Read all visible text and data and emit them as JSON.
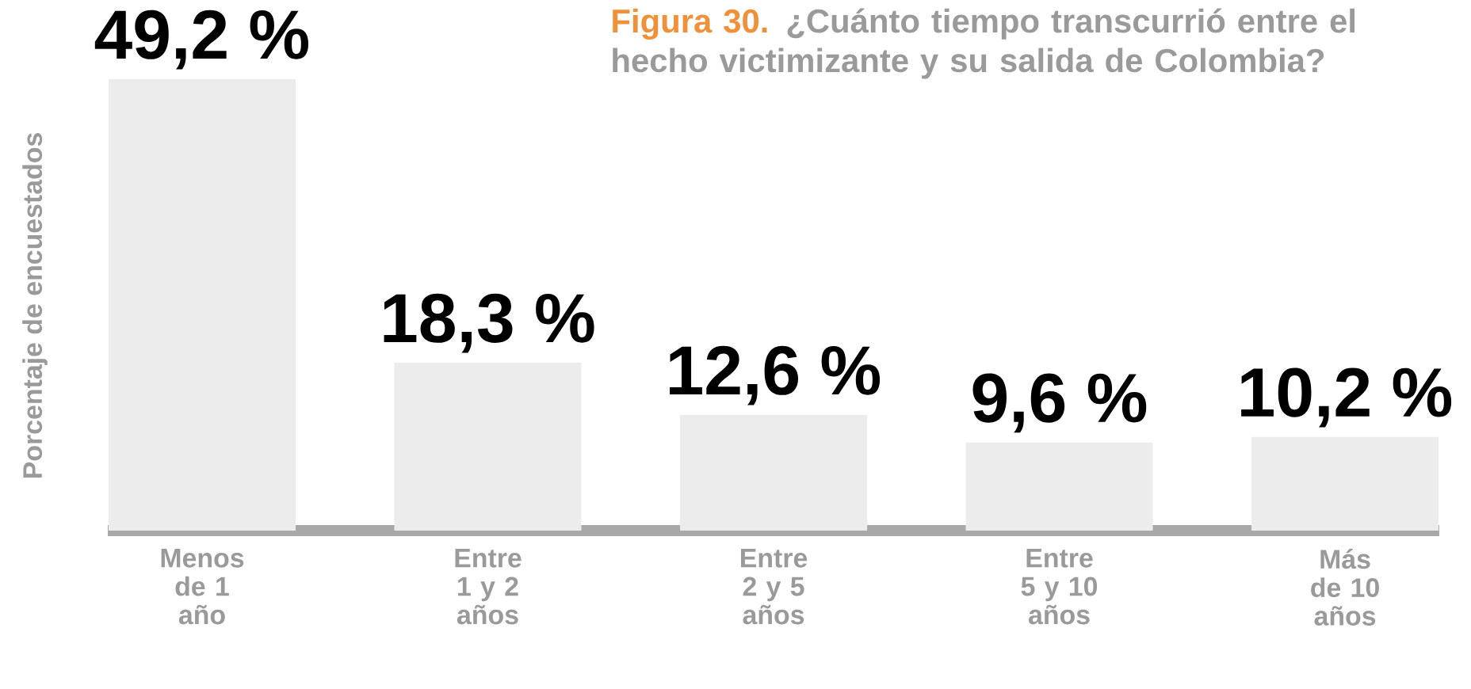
{
  "chart_data": {
    "type": "bar",
    "title": "Figura 30.",
    "subtitle": "¿Cuánto tiempo transcurrió entre el hecho victimizante y su salida de Colombia?",
    "ylabel": "Porcentaje de encuestados",
    "categories": [
      "Menos de 1 año",
      "Entre 1 y 2 años",
      "Entre 2 y 5 años",
      "Entre 5 y 10 años",
      "Más de 10 años"
    ],
    "values": [
      49.2,
      18.3,
      12.6,
      9.6,
      10.2
    ],
    "value_labels": [
      "49,2 %",
      "18,3 %",
      "12,6 %",
      "9,6 %",
      "10,2 %"
    ],
    "color": "#ececec"
  }
}
